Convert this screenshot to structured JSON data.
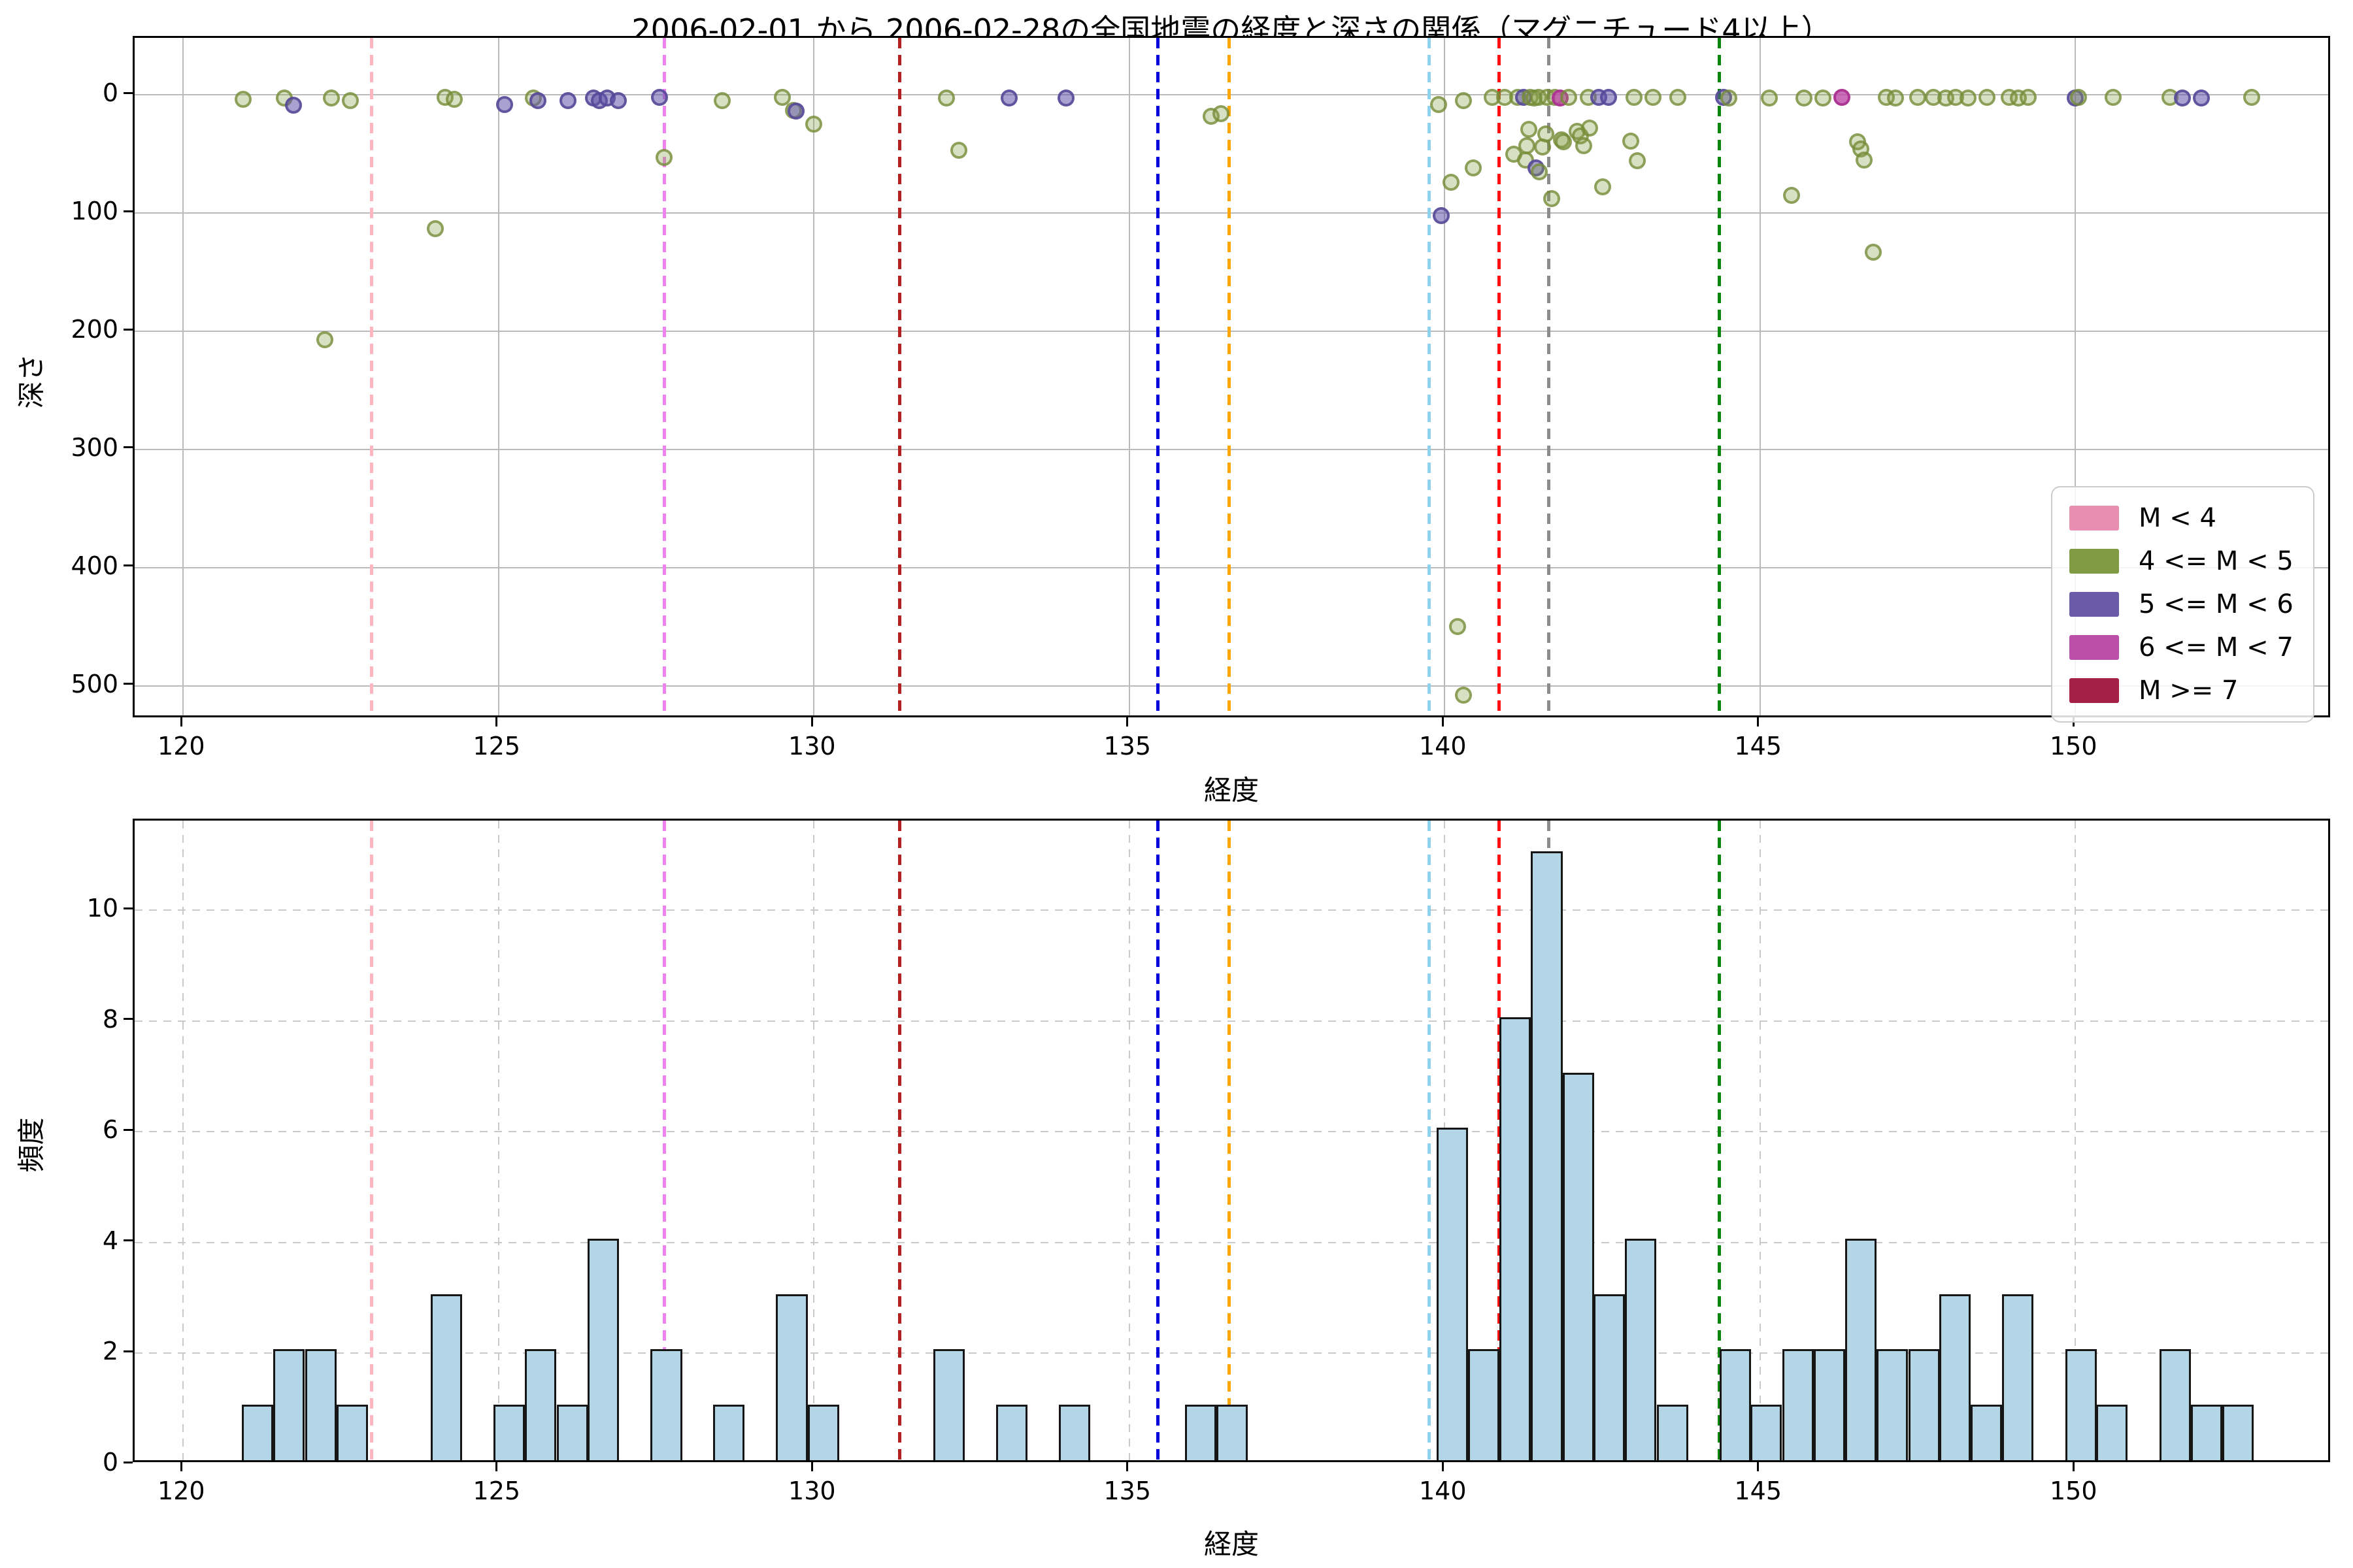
{
  "title": "2006-02-01 から 2006-02-28の全国地震の経度と深さの関係（マグニチュード4以上）",
  "chart_data": [
    {
      "type": "scatter",
      "xlabel": "経度",
      "ylabel": "深さ",
      "xlim": [
        119.23,
        154.07
      ],
      "ylim": [
        -48.1,
        528.2
      ],
      "y_inverted": true,
      "grid": "solid",
      "xticks": [
        120,
        125,
        130,
        135,
        140,
        145,
        150
      ],
      "yticks": [
        0,
        100,
        200,
        300,
        400,
        500
      ],
      "legend_position": "lower right",
      "legend": [
        {
          "label": "M < 4",
          "color": "#e88fb1"
        },
        {
          "label": "4 <= M < 5",
          "color": "#7f9b44"
        },
        {
          "label": "5 <= M < 6",
          "color": "#6a5aa8"
        },
        {
          "label": "6 <= M < 7",
          "color": "#bc4fa8"
        },
        {
          "label": "M >= 7",
          "color": "#a52045"
        }
      ],
      "classes": {
        "m4": {
          "label": "4 <= M < 5",
          "fill": "rgba(133,158,69,0.32)",
          "edge": "rgba(116,139,55,0.75)"
        },
        "m5": {
          "label": "5 <= M < 6",
          "fill": "rgba(99,84,168,0.55)",
          "edge": "rgba(86,72,152,0.85)"
        },
        "m6": {
          "label": "6 <= M < 7",
          "fill": "rgba(190,72,166,0.8)",
          "edge": "rgba(172,52,148,0.95)"
        }
      },
      "points": [
        [
          120.95,
          4,
          "m4"
        ],
        [
          121.6,
          3,
          "m4"
        ],
        [
          121.75,
          9,
          "m5"
        ],
        [
          122.25,
          207,
          "m4"
        ],
        [
          122.35,
          3,
          "m4"
        ],
        [
          122.65,
          5,
          "m4"
        ],
        [
          124.0,
          113,
          "m4"
        ],
        [
          124.15,
          2,
          "m4"
        ],
        [
          124.3,
          4,
          "m4"
        ],
        [
          125.1,
          8,
          "m5"
        ],
        [
          125.55,
          3,
          "m4"
        ],
        [
          125.62,
          5,
          "m5"
        ],
        [
          126.1,
          5,
          "m5"
        ],
        [
          126.5,
          3,
          "m5"
        ],
        [
          126.6,
          5,
          "m5"
        ],
        [
          126.72,
          3,
          "m5"
        ],
        [
          126.9,
          5,
          "m5"
        ],
        [
          127.55,
          2,
          "m5"
        ],
        [
          127.62,
          53,
          "m4"
        ],
        [
          128.55,
          5,
          "m4"
        ],
        [
          129.5,
          2,
          "m4"
        ],
        [
          129.68,
          13,
          "m4"
        ],
        [
          129.72,
          14,
          "m5"
        ],
        [
          130.0,
          25,
          "m4"
        ],
        [
          132.1,
          3,
          "m4"
        ],
        [
          132.3,
          47,
          "m4"
        ],
        [
          133.1,
          3,
          "m5"
        ],
        [
          134.0,
          3,
          "m5"
        ],
        [
          136.3,
          18,
          "m4"
        ],
        [
          136.45,
          16,
          "m4"
        ],
        [
          139.9,
          8,
          "m4"
        ],
        [
          139.95,
          102,
          "m5"
        ],
        [
          140.1,
          74,
          "m4"
        ],
        [
          140.2,
          450,
          "m4"
        ],
        [
          140.3,
          508,
          "m4"
        ],
        [
          140.3,
          5,
          "m4"
        ],
        [
          140.45,
          62,
          "m4"
        ],
        [
          140.75,
          2,
          "m4"
        ],
        [
          140.95,
          2,
          "m4"
        ],
        [
          141.1,
          50,
          "m4"
        ],
        [
          141.16,
          2,
          "m4"
        ],
        [
          141.25,
          2,
          "m5"
        ],
        [
          141.28,
          55,
          "m4"
        ],
        [
          141.3,
          43,
          "m4"
        ],
        [
          141.33,
          29,
          "m4"
        ],
        [
          141.35,
          2,
          "m4"
        ],
        [
          141.42,
          3,
          "m4"
        ],
        [
          141.45,
          62,
          "m5"
        ],
        [
          141.49,
          2,
          "m4"
        ],
        [
          141.5,
          65,
          "m4"
        ],
        [
          141.55,
          44,
          "m4"
        ],
        [
          141.6,
          33,
          "m4"
        ],
        [
          141.62,
          2,
          "m4"
        ],
        [
          141.7,
          88,
          "m4"
        ],
        [
          141.75,
          2,
          "m4"
        ],
        [
          141.83,
          3,
          "m6"
        ],
        [
          141.85,
          38,
          "m4"
        ],
        [
          141.88,
          40,
          "m4"
        ],
        [
          141.97,
          2,
          "m4"
        ],
        [
          142.1,
          31,
          "m4"
        ],
        [
          142.15,
          35,
          "m4"
        ],
        [
          142.2,
          43,
          "m4"
        ],
        [
          142.28,
          2,
          "m4"
        ],
        [
          142.3,
          28,
          "m4"
        ],
        [
          142.44,
          2,
          "m5"
        ],
        [
          142.5,
          78,
          "m4"
        ],
        [
          142.6,
          2,
          "m5"
        ],
        [
          142.95,
          39,
          "m4"
        ],
        [
          143.0,
          2,
          "m4"
        ],
        [
          143.05,
          56,
          "m4"
        ],
        [
          143.3,
          2,
          "m4"
        ],
        [
          143.7,
          2,
          "m4"
        ],
        [
          144.42,
          2,
          "m5"
        ],
        [
          144.5,
          3,
          "m4"
        ],
        [
          145.15,
          3,
          "m4"
        ],
        [
          145.5,
          85,
          "m4"
        ],
        [
          145.7,
          3,
          "m4"
        ],
        [
          146.0,
          3,
          "m4"
        ],
        [
          146.3,
          2,
          "m6"
        ],
        [
          146.55,
          40,
          "m4"
        ],
        [
          146.6,
          46,
          "m4"
        ],
        [
          146.65,
          55,
          "m4"
        ],
        [
          146.8,
          133,
          "m4"
        ],
        [
          147.0,
          2,
          "m4"
        ],
        [
          147.15,
          3,
          "m4"
        ],
        [
          147.5,
          2,
          "m4"
        ],
        [
          147.75,
          2,
          "m4"
        ],
        [
          147.95,
          3,
          "m4"
        ],
        [
          148.1,
          2,
          "m4"
        ],
        [
          148.3,
          3,
          "m4"
        ],
        [
          148.6,
          2,
          "m4"
        ],
        [
          148.95,
          2,
          "m4"
        ],
        [
          149.1,
          3,
          "m4"
        ],
        [
          149.25,
          2,
          "m4"
        ],
        [
          150.0,
          3,
          "m5"
        ],
        [
          150.05,
          2,
          "m4"
        ],
        [
          150.6,
          2,
          "m4"
        ],
        [
          151.5,
          2,
          "m4"
        ],
        [
          151.7,
          3,
          "m5"
        ],
        [
          152.0,
          3,
          "m5"
        ],
        [
          152.8,
          2,
          "m4"
        ]
      ]
    },
    {
      "type": "bar",
      "xlabel": "経度",
      "ylabel": "頻度",
      "xlim": [
        119.23,
        154.07
      ],
      "ylim": [
        0,
        11.62
      ],
      "grid": "dashed",
      "xticks": [
        120,
        125,
        130,
        135,
        140,
        145,
        150
      ],
      "yticks": [
        0,
        2,
        4,
        6,
        8,
        10
      ],
      "bin_width": 0.4991,
      "bins": [
        [
          120.93,
          1
        ],
        [
          121.43,
          2
        ],
        [
          121.93,
          2
        ],
        [
          122.43,
          1
        ],
        [
          123.92,
          3
        ],
        [
          124.92,
          1
        ],
        [
          125.42,
          2
        ],
        [
          125.92,
          1
        ],
        [
          126.41,
          4
        ],
        [
          127.41,
          2
        ],
        [
          128.4,
          1
        ],
        [
          129.4,
          3
        ],
        [
          129.9,
          1
        ],
        [
          131.89,
          2
        ],
        [
          132.89,
          1
        ],
        [
          133.88,
          1
        ],
        [
          135.88,
          1
        ],
        [
          136.38,
          1
        ],
        [
          139.87,
          6
        ],
        [
          140.37,
          2
        ],
        [
          140.87,
          8
        ],
        [
          141.37,
          11
        ],
        [
          141.87,
          7
        ],
        [
          142.36,
          3
        ],
        [
          142.86,
          4
        ],
        [
          143.36,
          1
        ],
        [
          144.36,
          2
        ],
        [
          144.85,
          1
        ],
        [
          145.35,
          2
        ],
        [
          145.85,
          2
        ],
        [
          146.35,
          4
        ],
        [
          146.85,
          2
        ],
        [
          147.35,
          2
        ],
        [
          147.84,
          3
        ],
        [
          148.34,
          1
        ],
        [
          148.84,
          3
        ],
        [
          149.84,
          2
        ],
        [
          150.33,
          1
        ],
        [
          151.33,
          2
        ],
        [
          151.83,
          1
        ],
        [
          152.33,
          1
        ]
      ],
      "bar_fill": "#b4d5e5",
      "bar_edge": "#161616"
    }
  ],
  "event_lines": [
    {
      "x": 122.98,
      "color": "#ffb6c1"
    },
    {
      "x": 127.62,
      "color": "#ee82ee"
    },
    {
      "x": 131.35,
      "color": "#b22222"
    },
    {
      "x": 135.45,
      "color": "#0000dd"
    },
    {
      "x": 136.58,
      "color": "#ffa500"
    },
    {
      "x": 139.75,
      "color": "#8fd2ee"
    },
    {
      "x": 140.86,
      "color": "#ff0f0f"
    },
    {
      "x": 141.65,
      "color": "#8c8c8c"
    },
    {
      "x": 144.35,
      "color": "#0c850c"
    }
  ]
}
